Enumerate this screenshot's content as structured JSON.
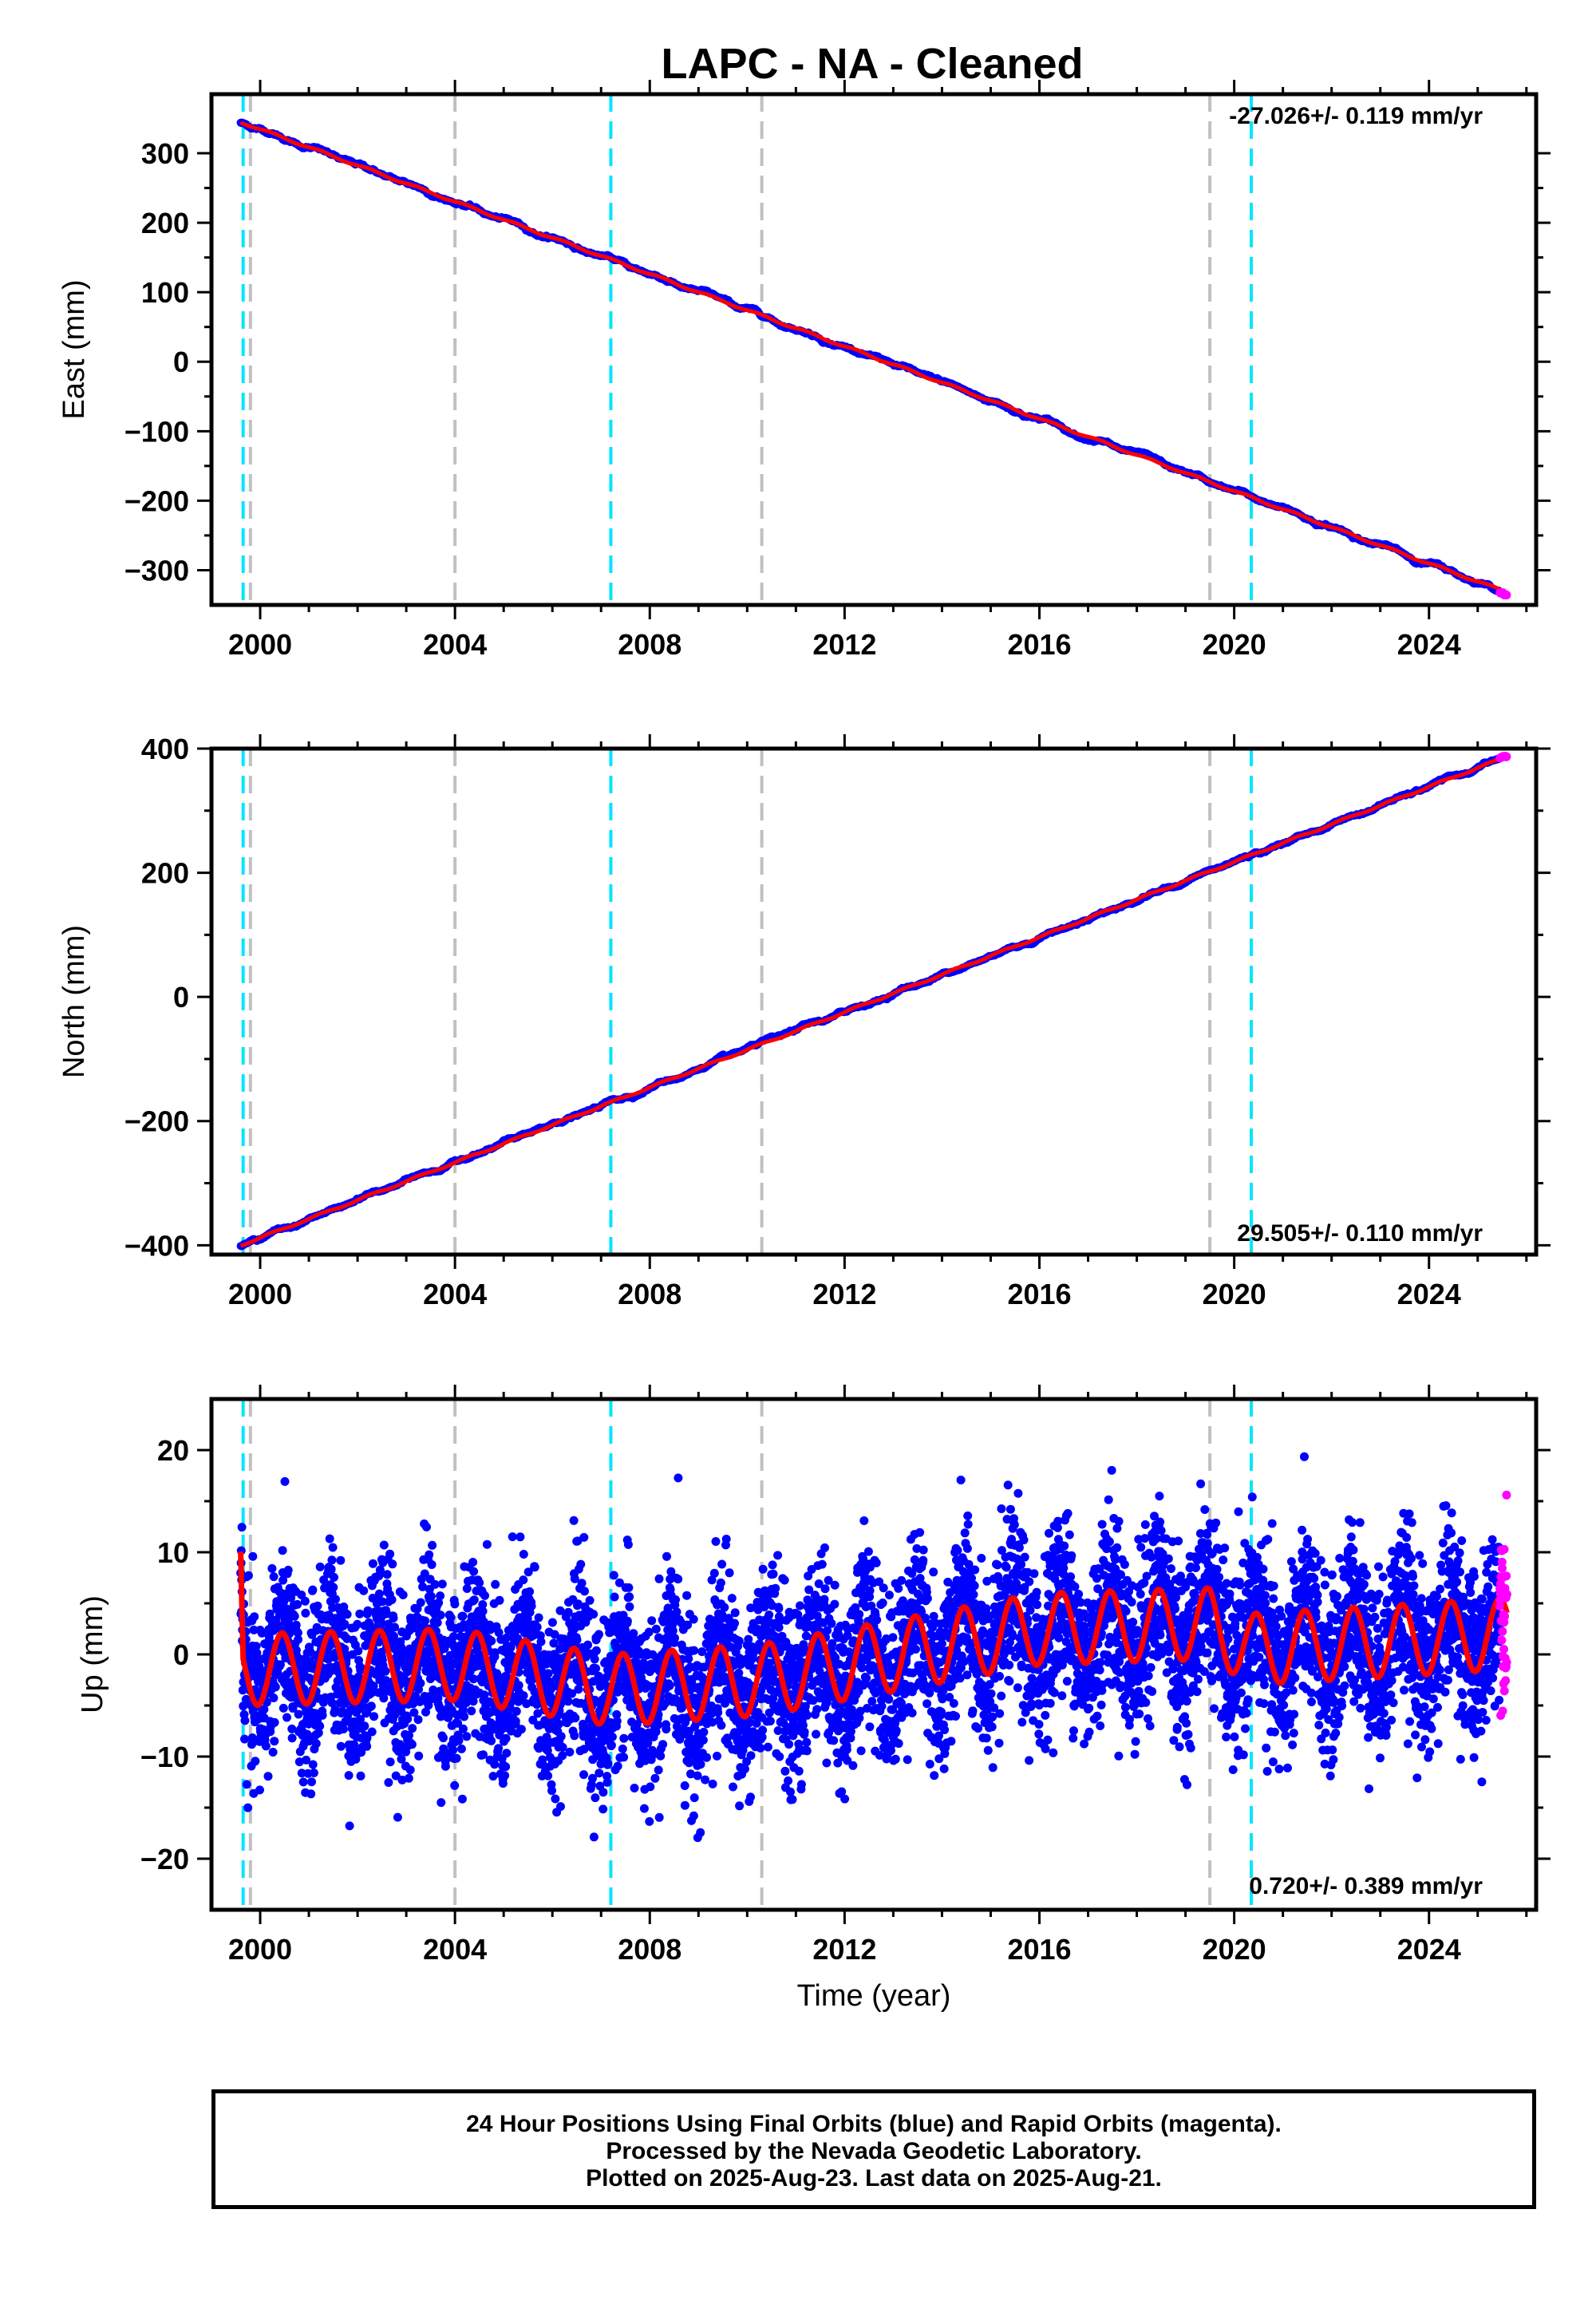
{
  "title": "LAPC  - NA - Cleaned",
  "chart_data": [
    {
      "type": "scatter",
      "panel": "east",
      "ylabel": "East (mm)",
      "xlabel": "",
      "xlim": [
        1999.0,
        2026.2
      ],
      "ylim": [
        -350,
        385
      ],
      "xticks": [
        2000,
        2004,
        2008,
        2012,
        2016,
        2020,
        2024
      ],
      "yticks": [
        -300,
        -200,
        -100,
        0,
        100,
        200,
        300
      ],
      "rate": "-27.026+/- 0.119 mm/yr",
      "start": [
        1999.6,
        345
      ],
      "end": [
        2025.6,
        -332
      ],
      "equipment_changes_cyan": [
        1999.65,
        2007.2,
        2020.35
      ],
      "other_steps_gray": [
        1999.8,
        2004.0,
        2010.3,
        2019.5
      ],
      "series": [
        {
          "name": "Final Orbits",
          "color": "#0000ff"
        },
        {
          "name": "Rapid Orbits",
          "color": "#ff00ff"
        },
        {
          "name": "Model",
          "color": "#ff0000"
        }
      ]
    },
    {
      "type": "scatter",
      "panel": "north",
      "ylabel": "North (mm)",
      "xlabel": "",
      "xlim": [
        1999.0,
        2026.2
      ],
      "ylim": [
        -415,
        400
      ],
      "xticks": [
        2000,
        2004,
        2008,
        2012,
        2016,
        2020,
        2024
      ],
      "yticks": [
        -400,
        -200,
        0,
        200,
        400
      ],
      "rate": "29.505+/- 0.110 mm/yr",
      "start": [
        1999.6,
        -400
      ],
      "end": [
        2025.6,
        387
      ],
      "equipment_changes_cyan": [
        1999.65,
        2007.2,
        2020.35
      ],
      "other_steps_gray": [
        1999.8,
        2004.0,
        2010.3,
        2019.5
      ],
      "series": [
        {
          "name": "Final Orbits",
          "color": "#0000ff"
        },
        {
          "name": "Rapid Orbits",
          "color": "#ff00ff"
        },
        {
          "name": "Model",
          "color": "#ff0000"
        }
      ]
    },
    {
      "type": "scatter",
      "panel": "up",
      "ylabel": "Up (mm)",
      "xlabel": "Time (year)",
      "xlim": [
        1999.0,
        2026.2
      ],
      "ylim": [
        -25,
        25
      ],
      "xticks": [
        2000,
        2004,
        2008,
        2012,
        2016,
        2020,
        2024
      ],
      "yticks": [
        -20,
        -10,
        0,
        10,
        20
      ],
      "rate": "0.720+/- 0.389 mm/yr",
      "seasonal_amplitude": 3.5,
      "scatter_sd": 4.2,
      "model_offsets": [
        [
          1999.6,
          8
        ],
        [
          1999.65,
          -1.5
        ],
        [
          2004.0,
          -1
        ],
        [
          2007.2,
          -3.5
        ],
        [
          2010.3,
          -2.5
        ],
        [
          2016.0,
          2.5
        ],
        [
          2019.5,
          3
        ],
        [
          2020.35,
          0.5
        ],
        [
          2025.6,
          2
        ]
      ],
      "equipment_changes_cyan": [
        1999.65,
        2007.2,
        2020.35
      ],
      "other_steps_gray": [
        1999.8,
        2004.0,
        2010.3,
        2019.5
      ],
      "series": [
        {
          "name": "Final Orbits",
          "color": "#0000ff"
        },
        {
          "name": "Rapid Orbits",
          "color": "#ff00ff"
        },
        {
          "name": "Model",
          "color": "#ff0000"
        }
      ]
    }
  ],
  "footer": {
    "line1": "24 Hour Positions Using Final Orbits (blue) and Rapid Orbits (magenta).",
    "line2": "Processed by the Nevada Geodetic Laboratory.",
    "line3": "Plotted on 2025-Aug-23. Last data on 2025-Aug-21."
  }
}
